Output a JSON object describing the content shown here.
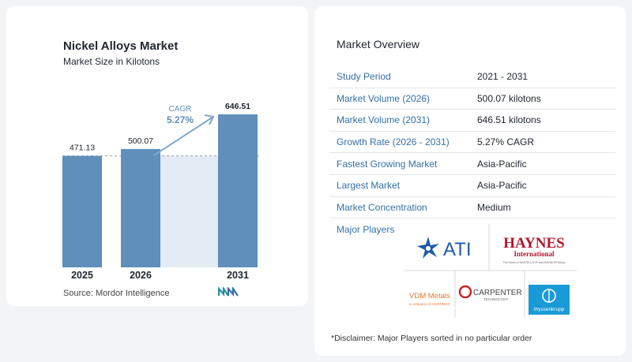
{
  "chart_data": {
    "type": "bar",
    "title": "Nickel Alloys Market",
    "subtitle": "Market Size in Kilotons",
    "categories": [
      "2025",
      "2026",
      "2031"
    ],
    "values": [
      471.13,
      500.07,
      646.51
    ],
    "value_labels": [
      "471.13",
      "500.07",
      "646.51"
    ],
    "annotation": {
      "label": "CAGR",
      "value": "5.27%"
    },
    "grid": false,
    "bar_color": "#5f8fba",
    "shade_color": "#e3ecf4"
  },
  "source": "Source:  Mordor Intelligence",
  "overview": {
    "title": "Market Overview",
    "rows": [
      {
        "label": "Study Period",
        "value": "2021 - 2031"
      },
      {
        "label": "Market Volume (2026)",
        "value": "500.07 kilotons"
      },
      {
        "label": "Market Volume (2031)",
        "value": "646.51 kilotons"
      },
      {
        "label": "Growth Rate (2026 - 2031)",
        "value": "5.27% CAGR"
      },
      {
        "label": "Fastest Growing Market",
        "value": "Asia-Pacific"
      },
      {
        "label": "Largest Market",
        "value": "Asia-Pacific"
      },
      {
        "label": "Market Concentration",
        "value": "Medium"
      }
    ]
  },
  "players": {
    "title": "Major Players",
    "logos": {
      "ati": "ATI",
      "haynes": "HAYNES",
      "haynes_sub": "International",
      "haynes_tag": "The Home of HASTELLOY® and HAYNES® Alloys",
      "vdm": "VDM Metals",
      "vdm_sub": "a company of ACERINOX",
      "carpenter": "CARPENTER",
      "carpenter_sub": "TECHNOLOGY",
      "thyssen": "thyssenkrupp"
    }
  },
  "disclaimer": "*Disclaimer: Major Players sorted in no particular order",
  "colors": {
    "accent": "#3470a8",
    "ati_blue": "#1f5aa8",
    "haynes_red": "#b5152b",
    "vdm_orange": "#e8772e",
    "thyssen_blue": "#1a9ad6"
  }
}
